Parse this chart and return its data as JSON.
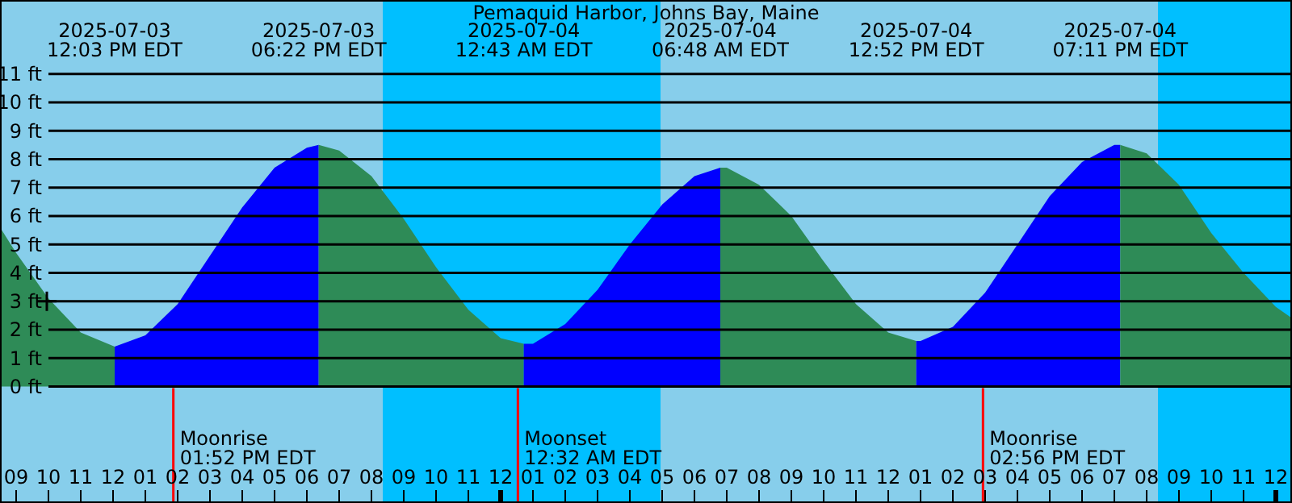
{
  "chart_data": {
    "type": "area",
    "title": "Pemaquid Harbor, Johns Bay, Maine",
    "series": [
      {
        "color": "#2e8b57",
        "x": [
          "2025-07-03T08:30",
          "2025-07-03T09:00",
          "2025-07-03T10:00",
          "2025-07-03T11:00",
          "2025-07-03T12:03"
        ],
        "values": [
          5.6,
          4.7,
          3.1,
          1.9,
          1.4
        ]
      },
      {
        "color": "#0000ff",
        "x": [
          "2025-07-03T12:03",
          "2025-07-03T13:00",
          "2025-07-03T14:00",
          "2025-07-03T15:00",
          "2025-07-03T16:00",
          "2025-07-03T17:00",
          "2025-07-03T18:00",
          "2025-07-03T18:22"
        ],
        "values": [
          1.4,
          1.8,
          2.9,
          4.6,
          6.3,
          7.7,
          8.4,
          8.5
        ]
      },
      {
        "color": "#2e8b57",
        "x": [
          "2025-07-03T18:22",
          "2025-07-03T19:00",
          "2025-07-03T20:00",
          "2025-07-03T21:00",
          "2025-07-03T22:00",
          "2025-07-03T23:00",
          "2025-07-04T00:00",
          "2025-07-04T00:43"
        ],
        "values": [
          8.5,
          8.3,
          7.4,
          5.9,
          4.2,
          2.7,
          1.7,
          1.5
        ]
      },
      {
        "color": "#0000ff",
        "x": [
          "2025-07-04T00:43",
          "2025-07-04T01:00",
          "2025-07-04T02:00",
          "2025-07-04T03:00",
          "2025-07-04T04:00",
          "2025-07-04T05:00",
          "2025-07-04T06:00",
          "2025-07-04T06:48"
        ],
        "values": [
          1.5,
          1.5,
          2.2,
          3.4,
          5.0,
          6.4,
          7.4,
          7.7
        ]
      },
      {
        "color": "#2e8b57",
        "x": [
          "2025-07-04T06:48",
          "2025-07-04T07:00",
          "2025-07-04T08:00",
          "2025-07-04T09:00",
          "2025-07-04T10:00",
          "2025-07-04T11:00",
          "2025-07-04T12:00",
          "2025-07-04T12:52"
        ],
        "values": [
          7.7,
          7.7,
          7.1,
          6.0,
          4.4,
          2.9,
          1.9,
          1.6
        ]
      },
      {
        "color": "#0000ff",
        "x": [
          "2025-07-04T12:52",
          "2025-07-04T13:00",
          "2025-07-04T14:00",
          "2025-07-04T15:00",
          "2025-07-04T16:00",
          "2025-07-04T17:00",
          "2025-07-04T18:00",
          "2025-07-04T19:00",
          "2025-07-04T19:11"
        ],
        "values": [
          1.6,
          1.6,
          2.1,
          3.3,
          5.0,
          6.7,
          7.9,
          8.5,
          8.5
        ]
      },
      {
        "color": "#2e8b57",
        "x": [
          "2025-07-04T19:11",
          "2025-07-04T20:00",
          "2025-07-04T21:00",
          "2025-07-04T22:00",
          "2025-07-04T23:00",
          "2025-07-05T00:00",
          "2025-07-05T00:30"
        ],
        "values": [
          8.5,
          8.2,
          7.1,
          5.4,
          4.0,
          2.8,
          2.4
        ]
      },
      {
        "type": "scatter",
        "color": "#000000",
        "marker": "cross",
        "x": [
          "2025-07-03T09:57"
        ],
        "values": [
          3.0
        ]
      }
    ],
    "xlim": [
      "2025-07-03T08:30",
      "2025-07-05T00:30"
    ],
    "ylim": [
      -4.1,
      13.6
    ],
    "yticks": [
      {
        "value": 0,
        "label": "0 ft"
      },
      {
        "value": 1,
        "label": "1 ft"
      },
      {
        "value": 2,
        "label": "2 ft"
      },
      {
        "value": 3,
        "label": "3 ft"
      },
      {
        "value": 4,
        "label": "4 ft"
      },
      {
        "value": 5,
        "label": "5 ft"
      },
      {
        "value": 6,
        "label": "6 ft"
      },
      {
        "value": 7,
        "label": "7 ft"
      },
      {
        "value": 8,
        "label": "8 ft"
      },
      {
        "value": 9,
        "label": "9 ft"
      },
      {
        "value": 10,
        "label": "10 ft"
      },
      {
        "value": 11,
        "label": "11 ft"
      }
    ],
    "xticks": [
      {
        "value": "2025-07-03T09:00",
        "label": "09"
      },
      {
        "value": "2025-07-03T10:00",
        "label": "10"
      },
      {
        "value": "2025-07-03T11:00",
        "label": "11"
      },
      {
        "value": "2025-07-03T12:00",
        "label": "12"
      },
      {
        "value": "2025-07-03T13:00",
        "label": "01"
      },
      {
        "value": "2025-07-03T14:00",
        "label": "02"
      },
      {
        "value": "2025-07-03T15:00",
        "label": "03"
      },
      {
        "value": "2025-07-03T16:00",
        "label": "04"
      },
      {
        "value": "2025-07-03T17:00",
        "label": "05"
      },
      {
        "value": "2025-07-03T18:00",
        "label": "06"
      },
      {
        "value": "2025-07-03T19:00",
        "label": "07"
      },
      {
        "value": "2025-07-03T20:00",
        "label": "08"
      },
      {
        "value": "2025-07-03T21:00",
        "label": "09"
      },
      {
        "value": "2025-07-03T22:00",
        "label": "10"
      },
      {
        "value": "2025-07-03T23:00",
        "label": "11"
      },
      {
        "value": "2025-07-04T00:00",
        "label": "12"
      },
      {
        "value": "2025-07-04T01:00",
        "label": "01"
      },
      {
        "value": "2025-07-04T02:00",
        "label": "02"
      },
      {
        "value": "2025-07-04T03:00",
        "label": "03"
      },
      {
        "value": "2025-07-04T04:00",
        "label": "04"
      },
      {
        "value": "2025-07-04T05:00",
        "label": "05"
      },
      {
        "value": "2025-07-04T06:00",
        "label": "06"
      },
      {
        "value": "2025-07-04T07:00",
        "label": "07"
      },
      {
        "value": "2025-07-04T08:00",
        "label": "08"
      },
      {
        "value": "2025-07-04T09:00",
        "label": "09"
      },
      {
        "value": "2025-07-04T10:00",
        "label": "10"
      },
      {
        "value": "2025-07-04T11:00",
        "label": "11"
      },
      {
        "value": "2025-07-04T12:00",
        "label": "12"
      },
      {
        "value": "2025-07-04T13:00",
        "label": "01"
      },
      {
        "value": "2025-07-04T14:00",
        "label": "02"
      },
      {
        "value": "2025-07-04T15:00",
        "label": "03"
      },
      {
        "value": "2025-07-04T16:00",
        "label": "04"
      },
      {
        "value": "2025-07-04T17:00",
        "label": "05"
      },
      {
        "value": "2025-07-04T18:00",
        "label": "06"
      },
      {
        "value": "2025-07-04T19:00",
        "label": "07"
      },
      {
        "value": "2025-07-04T20:00",
        "label": "08"
      },
      {
        "value": "2025-07-04T21:00",
        "label": "09"
      },
      {
        "value": "2025-07-04T22:00",
        "label": "10"
      },
      {
        "value": "2025-07-04T23:00",
        "label": "11"
      },
      {
        "value": "2025-07-05T00:00",
        "label": "12"
      }
    ],
    "grid": "y",
    "bands": [
      {
        "axis": "x",
        "from": "2025-07-03T08:30",
        "to": "2025-07-03T20:21",
        "color": "#87ceeb"
      },
      {
        "axis": "x",
        "from": "2025-07-03T20:21",
        "to": "2025-07-04T04:57",
        "color": "#00bfff"
      },
      {
        "axis": "x",
        "from": "2025-07-04T04:57",
        "to": "2025-07-04T20:21",
        "color": "#87ceeb"
      },
      {
        "axis": "x",
        "from": "2025-07-04T20:21",
        "to": "2025-07-05T00:30",
        "color": "#00bfff"
      }
    ],
    "ref_lines": [
      {
        "axis": "x",
        "value": "2025-07-03T13:52",
        "label": "Moonrise\n01:52 PM EDT",
        "color": "#ff0000"
      },
      {
        "axis": "x",
        "value": "2025-07-04T00:32",
        "label": "Moonset\n12:32 AM EDT",
        "color": "#ff0000"
      },
      {
        "axis": "x",
        "value": "2025-07-04T14:56",
        "label": "Moonrise\n02:56 PM EDT",
        "color": "#ff0000"
      }
    ],
    "annotations": [
      "2025-07-03\n12:03 PM EDT",
      "2025-07-03\n06:22 PM EDT",
      "2025-07-04\n12:43 AM EDT",
      "2025-07-04\n06:48 AM EDT",
      "2025-07-04\n12:52 PM EDT",
      "2025-07-04\n07:11 PM EDT"
    ]
  }
}
